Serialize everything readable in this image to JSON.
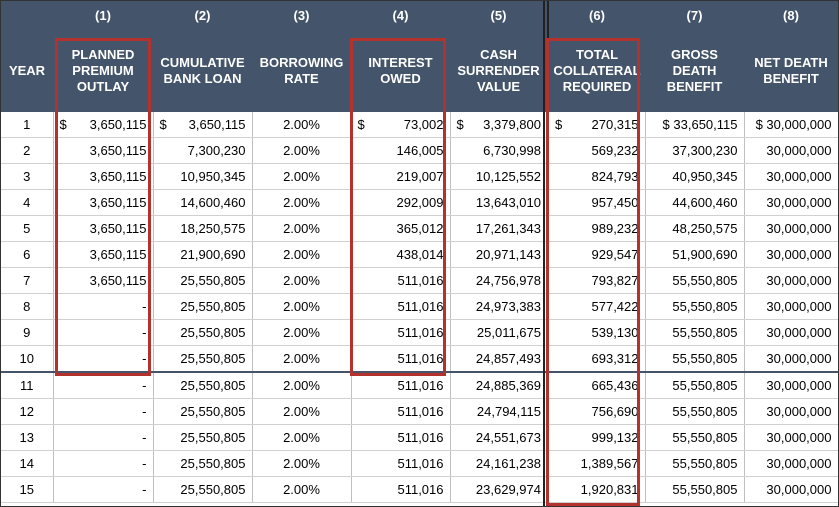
{
  "header_numbers": [
    "",
    "(1)",
    "(2)",
    "(3)",
    "(4)",
    "(5)",
    "(6)",
    "(7)",
    "(8)"
  ],
  "header_labels": [
    [
      "YEAR"
    ],
    [
      "PLANNED",
      "PREMIUM",
      "OUTLAY"
    ],
    [
      "CUMULATIVE",
      "BANK LOAN"
    ],
    [
      "BORROWING",
      "RATE"
    ],
    [
      "INTEREST",
      "OWED"
    ],
    [
      "CASH",
      "SURRENDER",
      "VALUE"
    ],
    [
      "TOTAL",
      "COLLATERAL",
      "REQUIRED"
    ],
    [
      "GROSS",
      "DEATH",
      "BENEFIT"
    ],
    [
      "NET DEATH",
      "BENEFIT"
    ]
  ],
  "currency_symbol": "$",
  "rows": [
    {
      "year": "1",
      "premium": "3,650,115",
      "loan": "3,650,115",
      "rate": "2.00%",
      "interest": "73,002",
      "csv": "3,379,800",
      "collateral": "270,315",
      "gross": "$ 33,650,115",
      "net": "$ 30,000,000"
    },
    {
      "year": "2",
      "premium": "3,650,115",
      "loan": "7,300,230",
      "rate": "2.00%",
      "interest": "146,005",
      "csv": "6,730,998",
      "collateral": "569,232",
      "gross": "37,300,230",
      "net": "30,000,000"
    },
    {
      "year": "3",
      "premium": "3,650,115",
      "loan": "10,950,345",
      "rate": "2.00%",
      "interest": "219,007",
      "csv": "10,125,552",
      "collateral": "824,793",
      "gross": "40,950,345",
      "net": "30,000,000"
    },
    {
      "year": "4",
      "premium": "3,650,115",
      "loan": "14,600,460",
      "rate": "2.00%",
      "interest": "292,009",
      "csv": "13,643,010",
      "collateral": "957,450",
      "gross": "44,600,460",
      "net": "30,000,000"
    },
    {
      "year": "5",
      "premium": "3,650,115",
      "loan": "18,250,575",
      "rate": "2.00%",
      "interest": "365,012",
      "csv": "17,261,343",
      "collateral": "989,232",
      "gross": "48,250,575",
      "net": "30,000,000"
    },
    {
      "year": "6",
      "premium": "3,650,115",
      "loan": "21,900,690",
      "rate": "2.00%",
      "interest": "438,014",
      "csv": "20,971,143",
      "collateral": "929,547",
      "gross": "51,900,690",
      "net": "30,000,000"
    },
    {
      "year": "7",
      "premium": "3,650,115",
      "loan": "25,550,805",
      "rate": "2.00%",
      "interest": "511,016",
      "csv": "24,756,978",
      "collateral": "793,827",
      "gross": "55,550,805",
      "net": "30,000,000"
    },
    {
      "year": "8",
      "premium": "-",
      "loan": "25,550,805",
      "rate": "2.00%",
      "interest": "511,016",
      "csv": "24,973,383",
      "collateral": "577,422",
      "gross": "55,550,805",
      "net": "30,000,000"
    },
    {
      "year": "9",
      "premium": "-",
      "loan": "25,550,805",
      "rate": "2.00%",
      "interest": "511,016",
      "csv": "25,011,675",
      "collateral": "539,130",
      "gross": "55,550,805",
      "net": "30,000,000"
    },
    {
      "year": "10",
      "premium": "-",
      "loan": "25,550,805",
      "rate": "2.00%",
      "interest": "511,016",
      "csv": "24,857,493",
      "collateral": "693,312",
      "gross": "55,550,805",
      "net": "30,000,000"
    },
    {
      "year": "11",
      "premium": "-",
      "loan": "25,550,805",
      "rate": "2.00%",
      "interest": "511,016",
      "csv": "24,885,369",
      "collateral": "665,436",
      "gross": "55,550,805",
      "net": "30,000,000"
    },
    {
      "year": "12",
      "premium": "-",
      "loan": "25,550,805",
      "rate": "2.00%",
      "interest": "511,016",
      "csv": "24,794,115",
      "collateral": "756,690",
      "gross": "55,550,805",
      "net": "30,000,000"
    },
    {
      "year": "13",
      "premium": "-",
      "loan": "25,550,805",
      "rate": "2.00%",
      "interest": "511,016",
      "csv": "24,551,673",
      "collateral": "999,132",
      "gross": "55,550,805",
      "net": "30,000,000"
    },
    {
      "year": "14",
      "premium": "-",
      "loan": "25,550,805",
      "rate": "2.00%",
      "interest": "511,016",
      "csv": "24,161,238",
      "collateral": "1,389,567",
      "gross": "55,550,805",
      "net": "30,000,000"
    },
    {
      "year": "15",
      "premium": "-",
      "loan": "25,550,805",
      "rate": "2.00%",
      "interest": "511,016",
      "csv": "23,629,974",
      "collateral": "1,920,831",
      "gross": "55,550,805",
      "net": "30,000,000"
    }
  ],
  "colors": {
    "header_bg": "#44546a",
    "highlight_box": "#b4322d"
  }
}
